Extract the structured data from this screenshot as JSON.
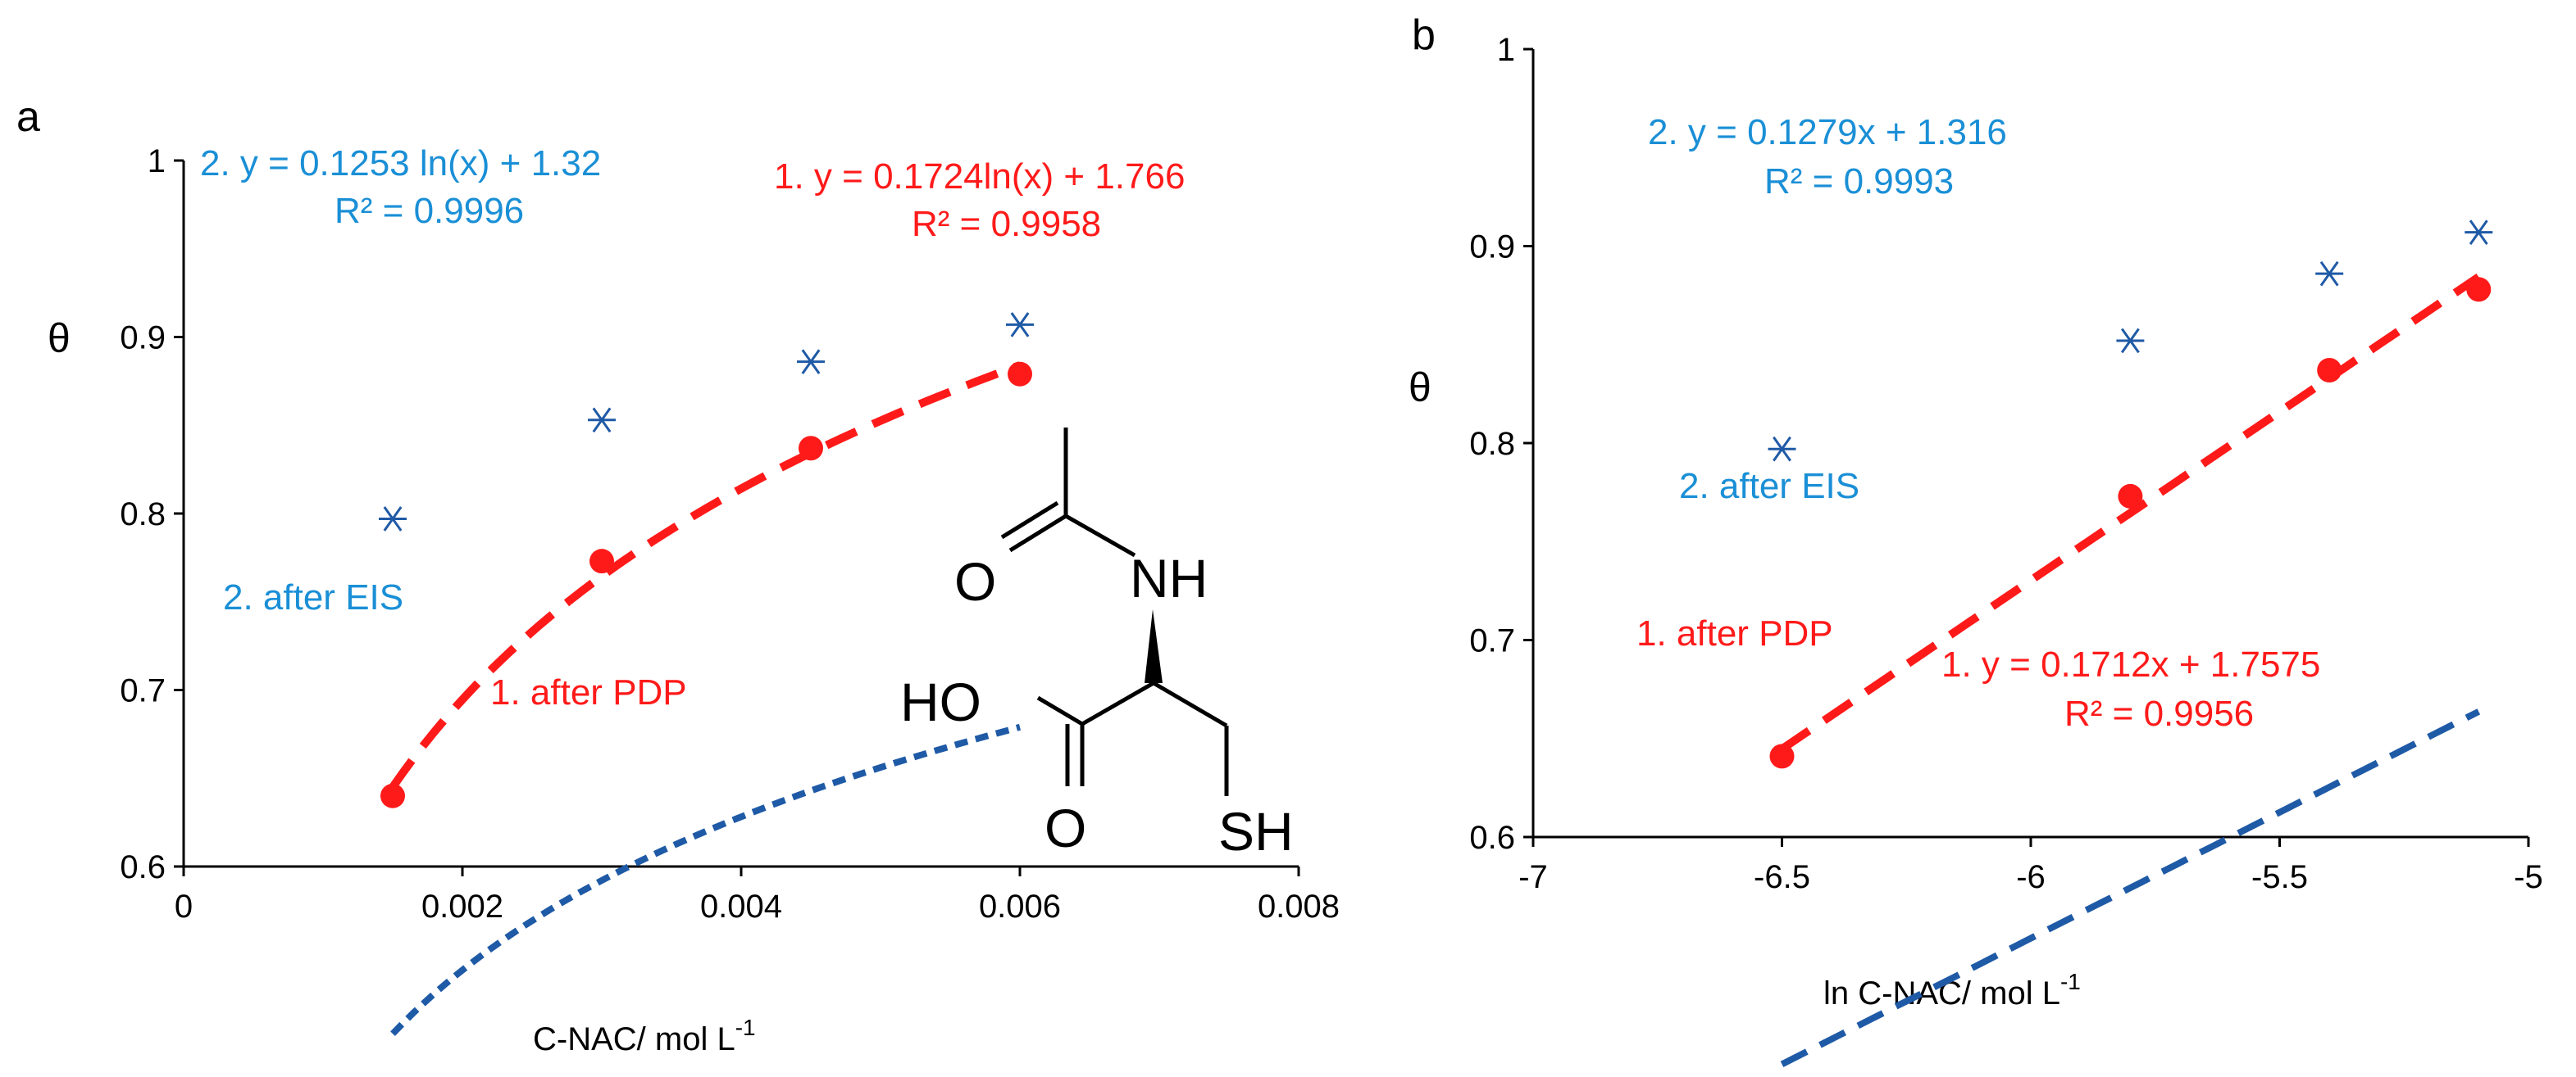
{
  "colors": {
    "blue_series": "#1f5aa6",
    "red_series": "#ff1a1a",
    "blue_text": "#1a8fd6",
    "red_text": "#ff1a1a",
    "axis": "#000000"
  },
  "molecule": {
    "labels": {
      "o_top": "O",
      "nh": "NH",
      "ho": "HO",
      "o_bottom": "O",
      "sh": "SH"
    }
  },
  "chart_data": [
    {
      "panel_label": "a",
      "type": "scatter",
      "xlabel": "C-NAC/ mol L",
      "xlabel_sup": "-1",
      "ylabel": "θ",
      "xlim": [
        0,
        0.008
      ],
      "ylim": [
        0.6,
        1.0
      ],
      "xticks": [
        "0",
        "0.002",
        "0.004",
        "0.006",
        "0.008"
      ],
      "yticks": [
        "0.6",
        "0.7",
        "0.8",
        "0.9",
        "1"
      ],
      "series": [
        {
          "name": "2. after EIS",
          "marker": "asterisk",
          "color": "#1f5aa6",
          "x": [
            0.0015,
            0.003,
            0.0045,
            0.006
          ],
          "y": [
            0.797,
            0.853,
            0.886,
            0.907
          ],
          "trend": {
            "kind": "log",
            "a": 0.1253,
            "b": 1.32
          },
          "equation": "2. y = 0.1253 ln(x)  + 1.32",
          "r2": "R² = 0.9996"
        },
        {
          "name": "1. after PDP",
          "marker": "circle",
          "color": "#ff1a1a",
          "x": [
            0.0015,
            0.003,
            0.0045,
            0.006
          ],
          "y": [
            0.64,
            0.773,
            0.837,
            0.879
          ],
          "trend": {
            "kind": "log",
            "a": 0.1724,
            "b": 1.766
          },
          "equation": "1. y = 0.1724ln(x)  + 1.766",
          "r2": "R² = 0.9958"
        }
      ]
    },
    {
      "panel_label": "b",
      "type": "scatter",
      "xlabel": "ln C-NAC/ mol L",
      "xlabel_sup": "-1",
      "ylabel": "θ",
      "xlim": [
        -7,
        -5
      ],
      "ylim": [
        0.6,
        1.0
      ],
      "xticks": [
        "-7",
        "-6.5",
        "-6",
        "-5.5",
        "-5"
      ],
      "yticks": [
        "0.6",
        "0.7",
        "0.8",
        "0.9",
        "1"
      ],
      "series": [
        {
          "name": "2. after EIS",
          "marker": "asterisk",
          "color": "#1f5aa6",
          "x": [
            -6.5,
            -5.8,
            -5.4,
            -5.1
          ],
          "y": [
            0.797,
            0.852,
            0.886,
            0.907
          ],
          "trend": {
            "kind": "linear",
            "a": 0.1279,
            "b": 1.316
          },
          "equation": "2. y = 0.1279x  + 1.316",
          "r2": "R² = 0.9993"
        },
        {
          "name": "1. after PDP",
          "marker": "circle",
          "color": "#ff1a1a",
          "x": [
            -6.5,
            -5.8,
            -5.4,
            -5.1
          ],
          "y": [
            0.641,
            0.773,
            0.837,
            0.878
          ],
          "trend": {
            "kind": "linear",
            "a": 0.1712,
            "b": 1.7575
          },
          "equation": "1. y = 0.1712x  + 1.7575",
          "r2": "R² = 0.9956"
        }
      ]
    }
  ]
}
